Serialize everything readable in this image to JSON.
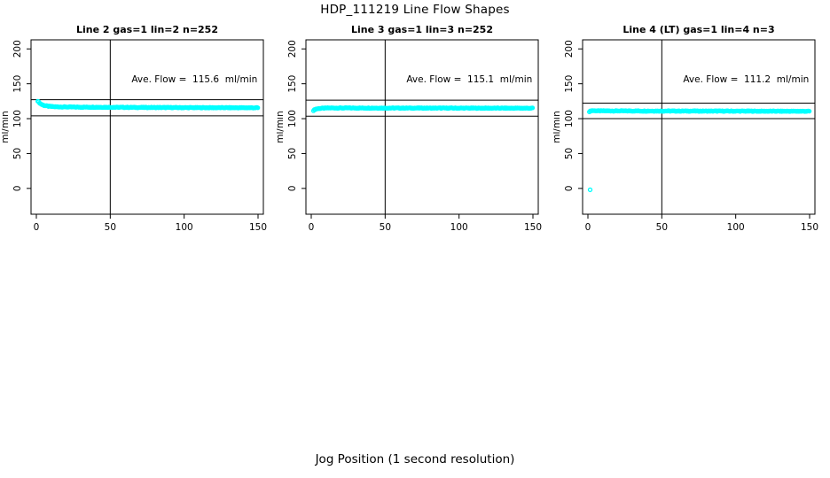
{
  "page": {
    "title": "HDP_111219  Line Flow Shapes",
    "xlabel": "Jog Position (1 second resolution)",
    "colors": {
      "points": "#00ffff",
      "axis": "#000000",
      "background": "#ffffff"
    }
  },
  "chart_data": [
    {
      "type": "scatter",
      "title": "Line 2 gas=1 lin=2 n=252",
      "ylabel": "ml/min",
      "annotation": "Ave. Flow =  115.6  ml/min",
      "ave_flow_ml_min": 115.6,
      "n_points": 252,
      "marker": "open-circle",
      "x_ticks": [
        0,
        50,
        100,
        150
      ],
      "y_ticks": [
        0,
        50,
        100,
        150,
        200
      ],
      "xlim": [
        -3.6,
        153.6
      ],
      "ylim": [
        -37,
        213
      ],
      "vline_x": 50,
      "hlines": [
        127.2,
        104.0
      ],
      "grid": false,
      "series": {
        "name": "flow",
        "x_start": 1,
        "x_end": 150,
        "x_step": 0.6,
        "jitter": 0.5,
        "keypoints": [
          [
            0.5,
            127
          ],
          [
            1.5,
            124
          ],
          [
            3,
            121
          ],
          [
            5,
            119
          ],
          [
            8,
            117.8
          ],
          [
            13,
            117
          ],
          [
            25,
            116.6
          ],
          [
            60,
            116.2
          ],
          [
            100,
            115.8
          ],
          [
            150,
            115.6
          ]
        ]
      },
      "extra_points": [],
      "annotation_pos": [
        107,
        156
      ]
    },
    {
      "type": "scatter",
      "title": "Line 3 gas=1 lin=3 n=252",
      "ylabel": "ml/min",
      "annotation": "Ave. Flow =  115.1  ml/min",
      "ave_flow_ml_min": 115.1,
      "n_points": 252,
      "marker": "open-circle",
      "x_ticks": [
        0,
        50,
        100,
        150
      ],
      "y_ticks": [
        0,
        50,
        100,
        150,
        200
      ],
      "xlim": [
        -3.6,
        153.6
      ],
      "ylim": [
        -37,
        213
      ],
      "vline_x": 50,
      "hlines": [
        126.6,
        103.6
      ],
      "grid": false,
      "series": {
        "name": "flow",
        "x_start": 1.5,
        "x_end": 150,
        "x_step": 0.6,
        "jitter": 0.5,
        "keypoints": [
          [
            1.5,
            111.8
          ],
          [
            3,
            113.8
          ],
          [
            6,
            114.8
          ],
          [
            12,
            115.3
          ],
          [
            60,
            115.2
          ],
          [
            150,
            115.0
          ]
        ]
      },
      "extra_points": [],
      "annotation_pos": [
        107,
        156
      ]
    },
    {
      "type": "scatter",
      "title": "Line 4 (LT) gas=1 lin=4 n=3",
      "ylabel": "ml/min",
      "annotation": "Ave. Flow =  111.2  ml/min",
      "ave_flow_ml_min": 111.2,
      "n_points": 3,
      "marker": "open-circle",
      "x_ticks": [
        0,
        50,
        100,
        150
      ],
      "y_ticks": [
        0,
        50,
        100,
        150,
        200
      ],
      "xlim": [
        -3.6,
        153.6
      ],
      "ylim": [
        -37,
        213
      ],
      "vline_x": 50,
      "hlines": [
        122.3,
        100.1
      ],
      "grid": false,
      "series": {
        "name": "flow",
        "x_start": 1,
        "x_end": 150,
        "x_step": 0.6,
        "jitter": 0.5,
        "keypoints": [
          [
            1,
            110.2
          ],
          [
            2.5,
            111.6
          ],
          [
            6,
            111.2
          ],
          [
            40,
            111.0
          ],
          [
            100,
            110.8
          ],
          [
            150,
            110.6
          ]
        ]
      },
      "extra_points": [
        [
          1.5,
          -2
        ]
      ],
      "annotation_pos": [
        107,
        156
      ]
    }
  ]
}
